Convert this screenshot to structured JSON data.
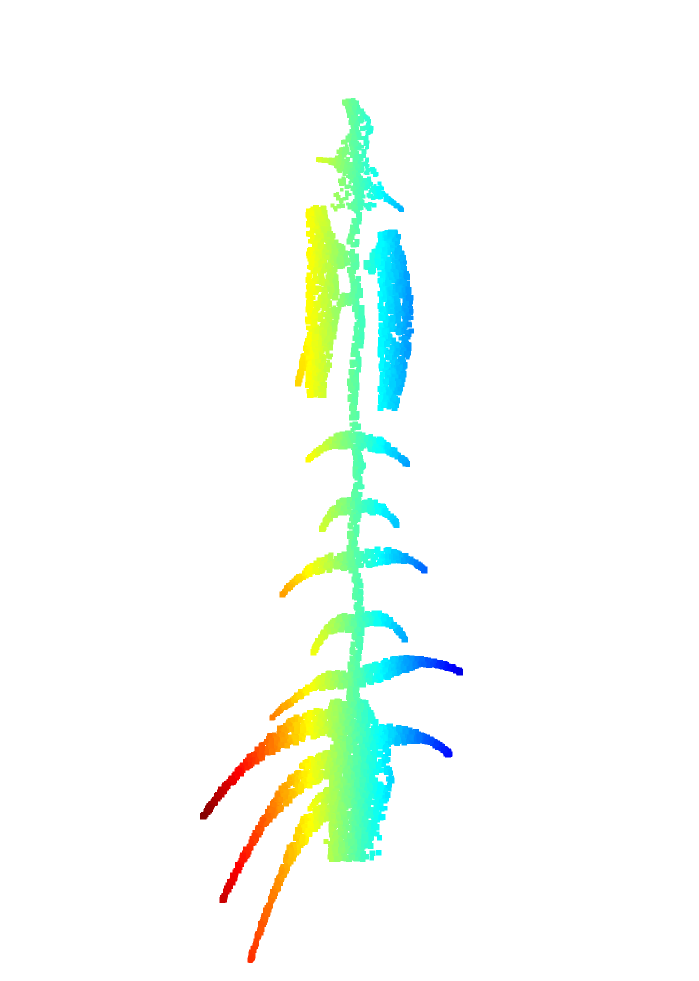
{
  "figure": {
    "subject": "plant-point-cloud",
    "colormap": "jet",
    "colormap_stops": [
      "#00007f",
      "#0000ff",
      "#007fff",
      "#00ffff",
      "#7fff7f",
      "#ffff00",
      "#ff7f00",
      "#ff0000",
      "#7f0000"
    ],
    "background_color": "#ffffff"
  }
}
